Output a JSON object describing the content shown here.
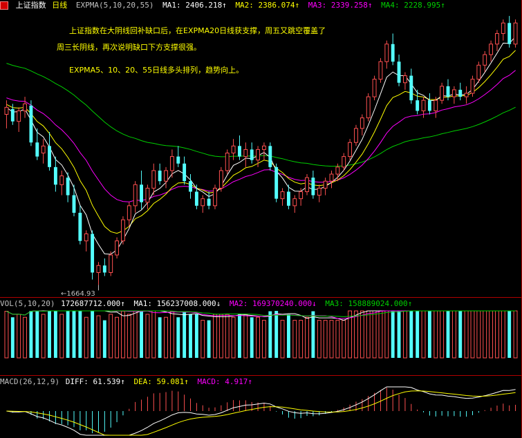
{
  "header": {
    "title": "上证指数",
    "period": "日线",
    "expma_label": "EXPMA(5,10,20,55)",
    "ma1": "MA1: 2406.218↑",
    "ma2": "MA2: 2386.074↑",
    "ma3": "MA3: 2339.258↑",
    "ma4": "MA4: 2228.995↑"
  },
  "annotations": {
    "line1": "上证指数在大阴线回补缺口后，在EXPMA20日线获支撑，周五又跳空覆盖了",
    "line2": "周三长阴线，再次说明缺口下方支撑很强。",
    "line3": "EXPMA5、10、20、55日线多头排列，趋势向上。",
    "low_label": "←1664.93"
  },
  "vol_header": {
    "label": "VOL(5,10,20)",
    "value": "172687712.000↑",
    "ma1": "MA1: 156237008.000↓",
    "ma2": "MA2: 169370240.000↓",
    "ma3": "MA3: 158889024.000↑"
  },
  "macd_header": {
    "label": "MACD(26,12,9)",
    "diff": "DIFF: 61.539↑",
    "dea": "DEA: 59.081↑",
    "macd": "MACD: 4.917↑"
  },
  "colors": {
    "up": "#ff5050",
    "down": "#54ffff",
    "ma1": "#ffffff",
    "ma2": "#ffff00",
    "ma3": "#ff00ff",
    "ma4": "#00d000",
    "border": "#b00000"
  },
  "chart_data": [
    {
      "type": "candlestick",
      "ylim": [
        1640,
        2440
      ],
      "grid": false,
      "series_names": [
        "MA1",
        "MA2",
        "MA3",
        "MA4"
      ],
      "ohlc": [
        [
          2150,
          2190,
          2110,
          2170
        ],
        [
          2165,
          2180,
          2120,
          2130
        ],
        [
          2130,
          2170,
          2100,
          2160
        ],
        [
          2160,
          2200,
          2140,
          2180
        ],
        [
          2175,
          2190,
          2060,
          2070
        ],
        [
          2070,
          2110,
          2020,
          2030
        ],
        [
          2040,
          2080,
          2010,
          2060
        ],
        [
          2060,
          2100,
          1990,
          2000
        ],
        [
          2000,
          2030,
          1930,
          1950
        ],
        [
          1950,
          1990,
          1920,
          1975
        ],
        [
          1970,
          1985,
          1900,
          1920
        ],
        [
          1920,
          1950,
          1860,
          1870
        ],
        [
          1870,
          1890,
          1780,
          1790
        ],
        [
          1790,
          1820,
          1760,
          1810
        ],
        [
          1810,
          1820,
          1680,
          1700
        ],
        [
          1700,
          1730,
          1664.93,
          1720
        ],
        [
          1720,
          1740,
          1690,
          1700
        ],
        [
          1700,
          1760,
          1690,
          1750
        ],
        [
          1750,
          1800,
          1740,
          1790
        ],
        [
          1790,
          1860,
          1780,
          1850
        ],
        [
          1850,
          1900,
          1830,
          1890
        ],
        [
          1890,
          1960,
          1870,
          1950
        ],
        [
          1950,
          1990,
          1880,
          1900
        ],
        [
          1900,
          1950,
          1880,
          1940
        ],
        [
          1940,
          2010,
          1920,
          1990
        ],
        [
          1990,
          2010,
          1950,
          1960
        ],
        [
          1960,
          2000,
          1940,
          1990
        ],
        [
          1990,
          2050,
          1970,
          2030
        ],
        [
          2030,
          2060,
          2000,
          2010
        ],
        [
          2010,
          2030,
          1950,
          1960
        ],
        [
          1960,
          1980,
          1910,
          1930
        ],
        [
          1930,
          1950,
          1880,
          1890
        ],
        [
          1890,
          1920,
          1870,
          1910
        ],
        [
          1910,
          1930,
          1880,
          1890
        ],
        [
          1890,
          1950,
          1880,
          1940
        ],
        [
          1940,
          2000,
          1930,
          1990
        ],
        [
          1990,
          2050,
          1980,
          2040
        ],
        [
          2040,
          2080,
          2020,
          2060
        ],
        [
          2060,
          2090,
          2020,
          2030
        ],
        [
          2030,
          2070,
          2000,
          2050
        ],
        [
          2050,
          2070,
          2010,
          2020
        ],
        [
          2020,
          2060,
          2000,
          2050
        ],
        [
          2050,
          2070,
          2020,
          2060
        ],
        [
          2060,
          2070,
          1990,
          2000
        ],
        [
          2000,
          2010,
          1900,
          1910
        ],
        [
          1910,
          1940,
          1890,
          1930
        ],
        [
          1930,
          1950,
          1880,
          1890
        ],
        [
          1890,
          1920,
          1870,
          1910
        ],
        [
          1910,
          1940,
          1890,
          1930
        ],
        [
          1930,
          1980,
          1920,
          1970
        ],
        [
          1970,
          1990,
          1910,
          1920
        ],
        [
          1920,
          1950,
          1900,
          1940
        ],
        [
          1940,
          1970,
          1920,
          1960
        ],
        [
          1960,
          1990,
          1940,
          1980
        ],
        [
          1980,
          2010,
          1960,
          2000
        ],
        [
          2000,
          2040,
          1990,
          2030
        ],
        [
          2030,
          2080,
          2020,
          2070
        ],
        [
          2070,
          2120,
          2060,
          2110
        ],
        [
          2110,
          2150,
          2090,
          2140
        ],
        [
          2140,
          2210,
          2130,
          2200
        ],
        [
          2200,
          2260,
          2190,
          2250
        ],
        [
          2250,
          2310,
          2240,
          2300
        ],
        [
          2300,
          2360,
          2280,
          2350
        ],
        [
          2350,
          2380,
          2290,
          2300
        ],
        [
          2300,
          2320,
          2230,
          2240
        ],
        [
          2240,
          2270,
          2220,
          2260
        ],
        [
          2260,
          2280,
          2180,
          2190
        ],
        [
          2190,
          2220,
          2150,
          2160
        ],
        [
          2160,
          2200,
          2140,
          2190
        ],
        [
          2190,
          2210,
          2150,
          2160
        ],
        [
          2160,
          2200,
          2140,
          2190
        ],
        [
          2190,
          2240,
          2180,
          2230
        ],
        [
          2230,
          2250,
          2190,
          2200
        ],
        [
          2200,
          2230,
          2180,
          2220
        ],
        [
          2220,
          2240,
          2190,
          2200
        ],
        [
          2200,
          2230,
          2180,
          2210
        ],
        [
          2210,
          2260,
          2200,
          2250
        ],
        [
          2250,
          2300,
          2240,
          2290
        ],
        [
          2290,
          2330,
          2270,
          2320
        ],
        [
          2320,
          2360,
          2300,
          2350
        ],
        [
          2350,
          2390,
          2330,
          2380
        ],
        [
          2380,
          2420,
          2360,
          2410
        ],
        [
          2410,
          2430,
          2340,
          2350
        ],
        [
          2350,
          2420,
          2340,
          2410
        ]
      ],
      "low_marker": 1664.93
    },
    {
      "type": "bar",
      "title": "VOL",
      "ylim": [
        0,
        300000000
      ]
    },
    {
      "type": "bar",
      "title": "MACD",
      "ylim": [
        -80,
        80
      ]
    }
  ]
}
